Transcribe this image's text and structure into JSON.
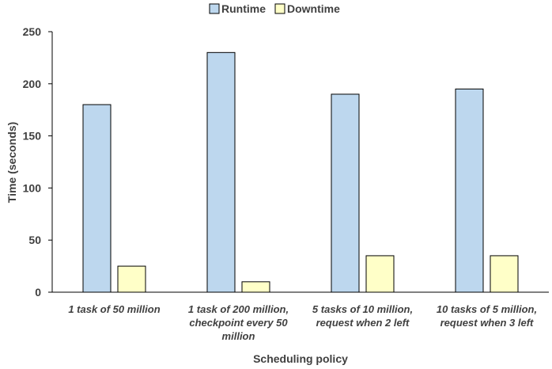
{
  "chart_data": {
    "type": "bar",
    "xlabel": "Scheduling policy",
    "ylabel": "Time (seconds)",
    "ylim": [
      0,
      250
    ],
    "yticks": [
      0,
      50,
      100,
      150,
      200,
      250
    ],
    "grid": false,
    "legend_position": "top-center",
    "categories": [
      [
        "1 task of 50 million"
      ],
      [
        "1 task of 200 million,",
        "checkpoint every 50",
        "million"
      ],
      [
        "5 tasks of 10 million,",
        "request when 2 left"
      ],
      [
        "10 tasks of 5 million,",
        "request when 3 left"
      ]
    ],
    "series": [
      {
        "name": "Runtime",
        "color": "#bdd7ee",
        "values": [
          180,
          230,
          190,
          195
        ]
      },
      {
        "name": "Downtime",
        "color": "#ffffc8",
        "values": [
          25,
          10,
          35,
          35
        ]
      }
    ]
  }
}
